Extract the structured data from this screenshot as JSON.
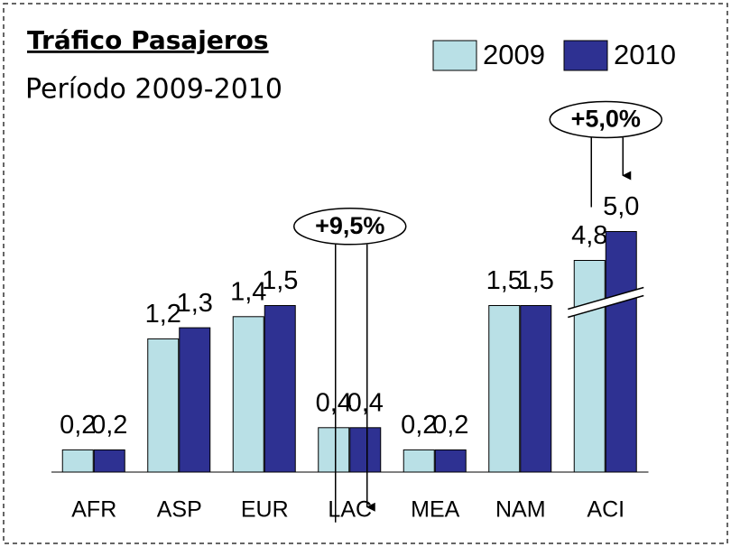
{
  "chart_data": {
    "type": "bar",
    "title": "Tráfico Pasajeros",
    "subtitle": "Período 2009-2010",
    "categories": [
      "AFR",
      "ASP",
      "EUR",
      "LAC",
      "MEA",
      "NAM",
      "ACI"
    ],
    "series": [
      {
        "name": "2009",
        "color": "#b9e0e6",
        "values": [
          0.2,
          1.2,
          1.4,
          0.4,
          0.2,
          1.5,
          4.8
        ],
        "value_labels": [
          "0,2",
          "1,2",
          "1,4",
          "0,4",
          "0,2",
          "1,5",
          "4,8"
        ]
      },
      {
        "name": "2010",
        "color": "#2e3192",
        "values": [
          0.2,
          1.3,
          1.5,
          0.4,
          0.2,
          1.5,
          5.0
        ],
        "value_labels": [
          "0,2",
          "1,3",
          "1,5",
          "0,4",
          "0,2",
          "1,5",
          "5,0"
        ]
      }
    ],
    "axis_break": true,
    "legend": "top-right",
    "annotations": [
      {
        "text": "+9,5%",
        "category": "LAC"
      },
      {
        "text": "+5,0%",
        "category": "ACI"
      }
    ]
  }
}
